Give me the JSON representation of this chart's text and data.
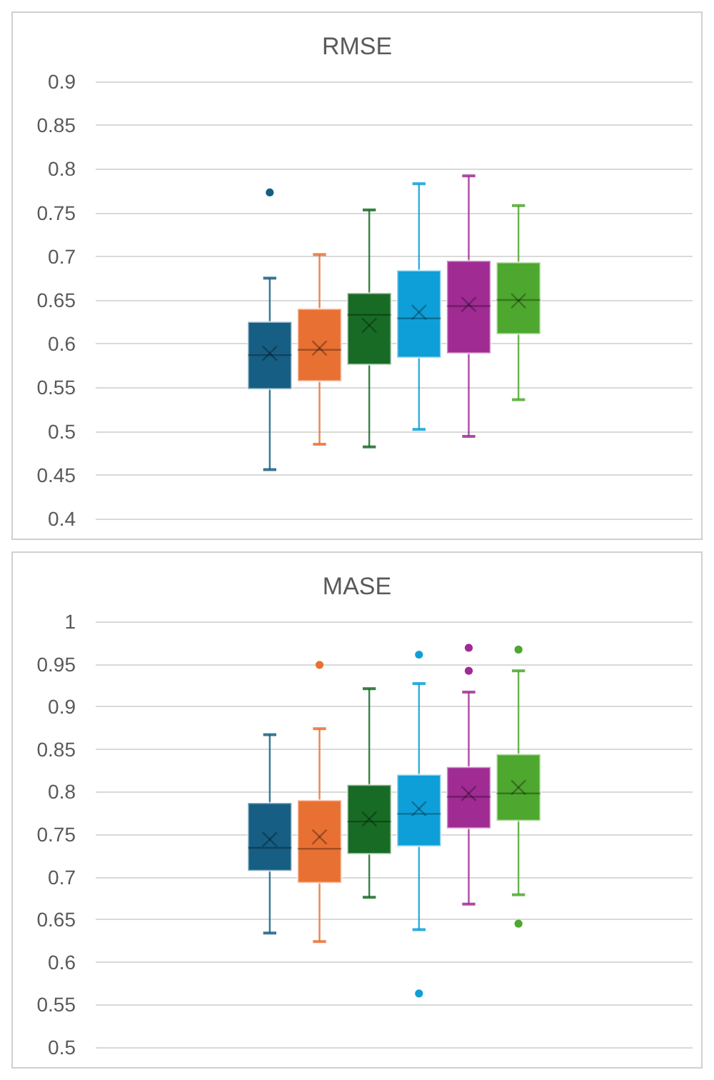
{
  "chart_data": [
    {
      "type": "box",
      "title": "RMSE",
      "categories": [
        null
      ],
      "ylim": [
        0.4,
        0.9
      ],
      "yticks": [
        0.4,
        0.45,
        0.5,
        0.55,
        0.6,
        0.65,
        0.7,
        0.75,
        0.8,
        0.85,
        0.9
      ],
      "grid": "y",
      "tick_labels": "y",
      "series": [
        {
          "color": "#165e83",
          "boxes": [
            {
              "low": 0.456,
              "q1": 0.548,
              "median": 0.587,
              "q3": 0.625,
              "high": 0.675,
              "mean": 0.589,
              "outliers": [
                0.773
              ]
            }
          ]
        },
        {
          "color": "#e87033",
          "boxes": [
            {
              "low": 0.485,
              "q1": 0.557,
              "median": 0.593,
              "q3": 0.64,
              "high": 0.702,
              "mean": 0.595
            }
          ]
        },
        {
          "color": "#186b24",
          "boxes": [
            {
              "low": 0.482,
              "q1": 0.576,
              "median": 0.633,
              "q3": 0.658,
              "high": 0.753,
              "mean": 0.621
            }
          ]
        },
        {
          "color": "#0e9fd8",
          "boxes": [
            {
              "low": 0.502,
              "q1": 0.584,
              "median": 0.629,
              "q3": 0.684,
              "high": 0.783,
              "mean": 0.636
            }
          ]
        },
        {
          "color": "#a02b93",
          "boxes": [
            {
              "low": 0.494,
              "q1": 0.589,
              "median": 0.643,
              "q3": 0.695,
              "high": 0.792,
              "mean": 0.645
            }
          ]
        },
        {
          "color": "#4ea72e",
          "boxes": [
            {
              "low": 0.536,
              "q1": 0.611,
              "median": 0.65,
              "q3": 0.693,
              "high": 0.758,
              "mean": 0.649
            }
          ]
        }
      ]
    },
    {
      "type": "box",
      "title": "MASE",
      "categories": [
        null
      ],
      "ylim": [
        0.5,
        1
      ],
      "yticks": [
        0.5,
        0.55,
        0.6,
        0.65,
        0.7,
        0.75,
        0.8,
        0.85,
        0.9,
        0.95,
        1
      ],
      "grid": "y",
      "tick_labels": "y",
      "series": [
        {
          "color": "#165e83",
          "boxes": [
            {
              "low": 0.634,
              "q1": 0.707,
              "median": 0.734,
              "q3": 0.787,
              "high": 0.867,
              "mean": 0.744
            }
          ]
        },
        {
          "color": "#e87033",
          "boxes": [
            {
              "low": 0.624,
              "q1": 0.693,
              "median": 0.733,
              "q3": 0.79,
              "high": 0.874,
              "mean": 0.747,
              "outliers": [
                0.949
              ]
            }
          ]
        },
        {
          "color": "#186b24",
          "boxes": [
            {
              "low": 0.676,
              "q1": 0.727,
              "median": 0.765,
              "q3": 0.808,
              "high": 0.921,
              "mean": 0.768
            }
          ]
        },
        {
          "color": "#0e9fd8",
          "boxes": [
            {
              "low": 0.638,
              "q1": 0.736,
              "median": 0.774,
              "q3": 0.82,
              "high": 0.927,
              "mean": 0.78,
              "outliers": [
                0.961,
                0.563
              ]
            }
          ]
        },
        {
          "color": "#a02b93",
          "boxes": [
            {
              "low": 0.668,
              "q1": 0.757,
              "median": 0.794,
              "q3": 0.829,
              "high": 0.917,
              "mean": 0.798,
              "outliers": [
                0.969,
                0.942
              ]
            }
          ]
        },
        {
          "color": "#4ea72e",
          "boxes": [
            {
              "low": 0.679,
              "q1": 0.766,
              "median": 0.798,
              "q3": 0.844,
              "high": 0.942,
              "mean": 0.805,
              "outliers": [
                0.967,
                0.645
              ]
            }
          ]
        }
      ]
    }
  ]
}
